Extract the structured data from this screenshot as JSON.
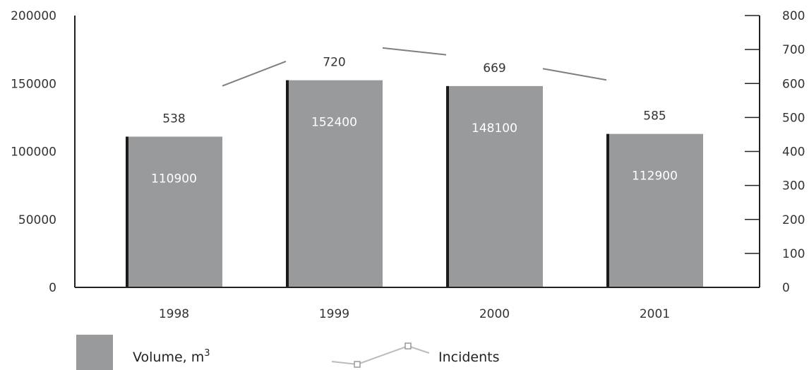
{
  "chart_data": {
    "type": "bar",
    "categories": [
      "1998",
      "1999",
      "2000",
      "2001"
    ],
    "series": [
      {
        "name": "Volume, m",
        "name_superscript": "3",
        "axis": "left",
        "type": "bar",
        "values": [
          110900,
          152400,
          148100,
          112900
        ],
        "color": "#999a9c"
      },
      {
        "name": "Incidents",
        "axis": "right",
        "type": "line",
        "values": [
          538,
          720,
          669,
          585
        ],
        "color": "#7f7f7f"
      }
    ],
    "left_axis": {
      "ylim": [
        0,
        200000
      ],
      "ticks": [
        0,
        50000,
        100000,
        150000,
        200000
      ]
    },
    "right_axis": {
      "ylim": [
        0,
        800
      ],
      "ticks": [
        0,
        100,
        200,
        300,
        400,
        500,
        600,
        700,
        800
      ]
    },
    "grid": false,
    "legend_position": "bottom-left"
  }
}
